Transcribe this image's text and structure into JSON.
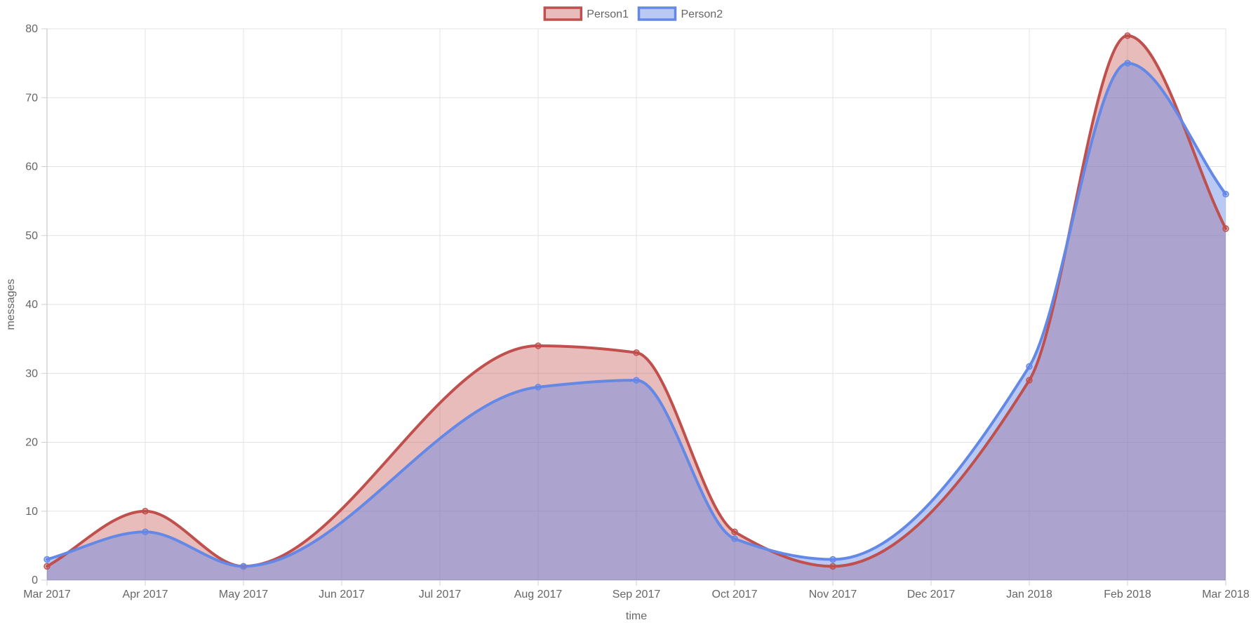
{
  "chart_data": {
    "type": "area",
    "x": [
      "2017-03",
      "2017-04",
      "2017-05",
      "2017-06",
      "2017-07",
      "2017-08",
      "2017-09",
      "2017-10",
      "2017-11",
      "2017-12",
      "2018-01",
      "2018-02",
      "2018-03"
    ],
    "x_tick_labels": [
      "Mar 2017",
      "Apr 2017",
      "May 2017",
      "Jun 2017",
      "Jul 2017",
      "Aug 2017",
      "Sep 2017",
      "Oct 2017",
      "Nov 2017",
      "Dec 2017",
      "Jan 2018",
      "Feb 2018",
      "Mar 2018"
    ],
    "series": [
      {
        "name": "Person1",
        "x": [
          "2017-03",
          "2017-04",
          "2017-05",
          "2017-08",
          "2017-09",
          "2017-10",
          "2017-11",
          "2018-01",
          "2018-02",
          "2018-03"
        ],
        "values": [
          2,
          10,
          2,
          34,
          33,
          7,
          2,
          29,
          79,
          51
        ],
        "line_color": "#c0504d",
        "fill_color": "rgba(192, 80, 77, 0.38)"
      },
      {
        "name": "Person2",
        "x": [
          "2017-03",
          "2017-04",
          "2017-05",
          "2017-08",
          "2017-09",
          "2017-10",
          "2017-11",
          "2018-01",
          "2018-02",
          "2018-03"
        ],
        "values": [
          3,
          7,
          2,
          28,
          29,
          6,
          3,
          31,
          75,
          56
        ],
        "line_color": "#6488e6",
        "fill_color": "rgba(100, 136, 230, 0.45)"
      }
    ],
    "xlabel": "time",
    "ylabel": "messages",
    "ylim": [
      0,
      80
    ],
    "y_ticks": [
      0,
      10,
      20,
      30,
      40,
      50,
      60,
      70,
      80
    ],
    "grid": true,
    "legend_position": "top-center",
    "curve": "smooth"
  }
}
